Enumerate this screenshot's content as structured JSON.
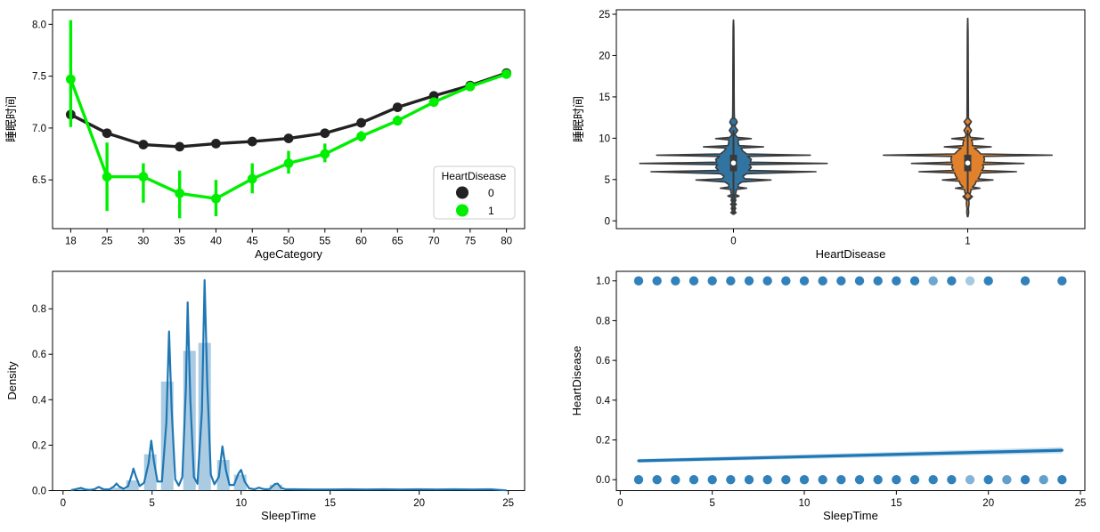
{
  "figure": {
    "background": "#ffffff"
  },
  "chart_data": [
    {
      "type": "pointplot",
      "position": "top-left",
      "xlabel": "AgeCategory",
      "ylabel": "睡眠时间",
      "categories": [
        "18",
        "25",
        "30",
        "35",
        "40",
        "45",
        "50",
        "55",
        "60",
        "65",
        "70",
        "75",
        "80"
      ],
      "ytick_values": [
        6.5,
        7.0,
        7.5,
        8.0
      ],
      "ytick_labels": [
        "6.5",
        "7.0",
        "7.5",
        "8.0"
      ],
      "ylim": [
        6.03,
        8.14
      ],
      "legend": {
        "title": "HeartDisease",
        "entries": [
          {
            "label": "0",
            "color": "#222222"
          },
          {
            "label": "1",
            "color": "#00ee00"
          }
        ]
      },
      "series": [
        {
          "name": "0",
          "color": "#222222",
          "values": [
            7.13,
            6.95,
            6.84,
            6.82,
            6.85,
            6.87,
            6.9,
            6.95,
            7.05,
            7.2,
            7.31,
            7.41,
            7.53
          ],
          "ci": [
            [
              7.09,
              7.17
            ],
            [
              6.93,
              6.97
            ],
            [
              6.82,
              6.86
            ],
            [
              6.8,
              6.84
            ],
            [
              6.83,
              6.87
            ],
            [
              6.85,
              6.89
            ],
            [
              6.88,
              6.92
            ],
            [
              6.93,
              6.97
            ],
            [
              7.03,
              7.07
            ],
            [
              7.18,
              7.22
            ],
            [
              7.29,
              7.33
            ],
            [
              7.39,
              7.43
            ],
            [
              7.5,
              7.56
            ]
          ]
        },
        {
          "name": "1",
          "color": "#00ee00",
          "values": [
            7.47,
            6.53,
            6.53,
            6.37,
            6.32,
            6.51,
            6.66,
            6.75,
            6.92,
            7.07,
            7.25,
            7.4,
            7.52
          ],
          "ci": [
            [
              7.01,
              8.04
            ],
            [
              6.2,
              6.86
            ],
            [
              6.28,
              6.66
            ],
            [
              6.13,
              6.59
            ],
            [
              6.15,
              6.5
            ],
            [
              6.37,
              6.66
            ],
            [
              6.56,
              6.78
            ],
            [
              6.67,
              6.85
            ],
            [
              6.87,
              6.97
            ],
            [
              7.03,
              7.12
            ],
            [
              7.21,
              7.29
            ],
            [
              7.36,
              7.44
            ],
            [
              7.49,
              7.56
            ]
          ]
        }
      ]
    },
    {
      "type": "violin",
      "position": "top-right",
      "xlabel": "HeartDisease",
      "ylabel": "睡眠时间",
      "categories": [
        "0",
        "1"
      ],
      "ytick_values": [
        0,
        5,
        10,
        15,
        20,
        25
      ],
      "ytick_labels": [
        "0",
        "5",
        "10",
        "15",
        "20",
        "25"
      ],
      "ylim": [
        -0.94,
        25.54
      ],
      "edge_color": "#3a3a3a",
      "inner_color": "#3a3a3a",
      "violins": [
        {
          "label": "0",
          "color": "#3274a1",
          "tip_top": 24.3,
          "tip_bottom": 0.8,
          "profile": [
            [
              0.8,
              0.004
            ],
            [
              1,
              0.028
            ],
            [
              1.2,
              0.01
            ],
            [
              1.5,
              0.024
            ],
            [
              1.8,
              0.01
            ],
            [
              2,
              0.03
            ],
            [
              2.2,
              0.012
            ],
            [
              2.5,
              0.026
            ],
            [
              2.8,
              0.012
            ],
            [
              3,
              0.06
            ],
            [
              3.2,
              0.02
            ],
            [
              3.5,
              0.028
            ],
            [
              3.8,
              0.03
            ],
            [
              3.95,
              0.14
            ],
            [
              4.1,
              0.05
            ],
            [
              4.4,
              0.05
            ],
            [
              4.7,
              0.09
            ],
            [
              4.95,
              0.4
            ],
            [
              5.1,
              0.12
            ],
            [
              5.4,
              0.1
            ],
            [
              5.7,
              0.14
            ],
            [
              5.95,
              0.88
            ],
            [
              6.1,
              0.16
            ],
            [
              6.45,
              0.19
            ],
            [
              6.8,
              0.17
            ],
            [
              6.95,
              1.0
            ],
            [
              7.1,
              0.18
            ],
            [
              7.45,
              0.19
            ],
            [
              7.8,
              0.15
            ],
            [
              7.95,
              0.82
            ],
            [
              8.1,
              0.14
            ],
            [
              8.45,
              0.1
            ],
            [
              8.8,
              0.08
            ],
            [
              8.95,
              0.32
            ],
            [
              9.1,
              0.06
            ],
            [
              9.45,
              0.05
            ],
            [
              9.8,
              0.05
            ],
            [
              9.95,
              0.19
            ],
            [
              10.1,
              0.04
            ],
            [
              10.45,
              0.015
            ],
            [
              10.95,
              0.045
            ],
            [
              11.45,
              0.012
            ],
            [
              11.95,
              0.04
            ],
            [
              12.45,
              0.01
            ],
            [
              13,
              0.009
            ],
            [
              14,
              0.008
            ],
            [
              16,
              0.007
            ],
            [
              18,
              0.007
            ],
            [
              20,
              0.006
            ],
            [
              22,
              0.005
            ],
            [
              23.5,
              0.004
            ],
            [
              24.3,
              0.001
            ]
          ],
          "box": {
            "q1": 6,
            "q3": 8,
            "median": 7,
            "whisker_lo": 3,
            "whisker_hi": 11
          },
          "outlier_circles": [
            12
          ],
          "outlier_dots": [
            3,
            2.5,
            2,
            1.5,
            1
          ],
          "outlier_diamonds": []
        },
        {
          "label": "1",
          "color": "#e1812c",
          "tip_top": 24.5,
          "tip_bottom": 0.5,
          "profile": [
            [
              0.5,
              0.003
            ],
            [
              1,
              0.01
            ],
            [
              1.5,
              0.008
            ],
            [
              2,
              0.014
            ],
            [
              2.5,
              0.012
            ],
            [
              2.95,
              0.05
            ],
            [
              3.15,
              0.02
            ],
            [
              3.45,
              0.03
            ],
            [
              3.8,
              0.035
            ],
            [
              3.95,
              0.13
            ],
            [
              4.1,
              0.05
            ],
            [
              4.45,
              0.08
            ],
            [
              4.8,
              0.09
            ],
            [
              4.95,
              0.27
            ],
            [
              5.1,
              0.11
            ],
            [
              5.45,
              0.13
            ],
            [
              5.8,
              0.14
            ],
            [
              5.95,
              0.52
            ],
            [
              6.1,
              0.15
            ],
            [
              6.45,
              0.17
            ],
            [
              6.8,
              0.16
            ],
            [
              6.95,
              0.6
            ],
            [
              7.1,
              0.17
            ],
            [
              7.45,
              0.18
            ],
            [
              7.8,
              0.17
            ],
            [
              7.95,
              0.9
            ],
            [
              8.1,
              0.14
            ],
            [
              8.45,
              0.11
            ],
            [
              8.8,
              0.07
            ],
            [
              8.95,
              0.25
            ],
            [
              9.1,
              0.05
            ],
            [
              9.45,
              0.05
            ],
            [
              9.8,
              0.04
            ],
            [
              9.95,
              0.17
            ],
            [
              10.1,
              0.03
            ],
            [
              10.45,
              0.015
            ],
            [
              10.95,
              0.04
            ],
            [
              11.45,
              0.01
            ],
            [
              11.95,
              0.035
            ],
            [
              12.45,
              0.008
            ],
            [
              13,
              0.008
            ],
            [
              15,
              0.007
            ],
            [
              18,
              0.006
            ],
            [
              21,
              0.005
            ],
            [
              23,
              0.004
            ],
            [
              24.5,
              0.001
            ]
          ],
          "box": {
            "q1": 6,
            "q3": 8,
            "median": 7,
            "whisker_lo": 3,
            "whisker_hi": 11
          },
          "outlier_circles": [],
          "outlier_dots": [],
          "outlier_diamonds": [
            12,
            3
          ]
        }
      ]
    },
    {
      "type": "distplot",
      "position": "bottom-left",
      "xlabel": "SleepTime",
      "ylabel": "Density",
      "xtick_values": [
        0,
        5,
        10,
        15,
        20,
        25
      ],
      "xtick_labels": [
        "0",
        "5",
        "10",
        "15",
        "20",
        "25"
      ],
      "ytick_values": [
        0.0,
        0.2,
        0.4,
        0.6,
        0.8
      ],
      "ytick_labels": [
        "0.0",
        "0.2",
        "0.4",
        "0.6",
        "0.8"
      ],
      "xlim": [
        -0.59,
        25.92
      ],
      "ylim": [
        0,
        0.9647
      ],
      "color": "#1f77b4",
      "hist_alpha": 0.38,
      "hist_bars": [
        [
          0.9,
          1.6,
          0.008
        ],
        [
          2.1,
          2.8,
          0.01
        ],
        [
          2.8,
          3.5,
          0.013
        ],
        [
          3.55,
          4.25,
          0.045
        ],
        [
          4.55,
          5.25,
          0.16
        ],
        [
          5.5,
          6.2,
          0.48
        ],
        [
          6.75,
          7.45,
          0.615
        ],
        [
          7.6,
          8.3,
          0.65
        ],
        [
          8.65,
          9.35,
          0.135
        ],
        [
          9.6,
          10.3,
          0.07
        ],
        [
          11.6,
          12.3,
          0.026
        ],
        [
          12.9,
          24.5,
          0.006
        ]
      ],
      "kde": [
        [
          0.45,
          0.002
        ],
        [
          0.7,
          0.006
        ],
        [
          1,
          0.012
        ],
        [
          1.25,
          0.005
        ],
        [
          1.5,
          0.003
        ],
        [
          1.75,
          0.006
        ],
        [
          2,
          0.016
        ],
        [
          2.3,
          0.005
        ],
        [
          2.6,
          0.006
        ],
        [
          2.85,
          0.018
        ],
        [
          3,
          0.031
        ],
        [
          3.15,
          0.018
        ],
        [
          3.4,
          0.008
        ],
        [
          3.65,
          0.02
        ],
        [
          3.88,
          0.075
        ],
        [
          3.95,
          0.097
        ],
        [
          4.1,
          0.06
        ],
        [
          4.3,
          0.02
        ],
        [
          4.55,
          0.035
        ],
        [
          4.8,
          0.12
        ],
        [
          4.95,
          0.22
        ],
        [
          5.1,
          0.13
        ],
        [
          5.3,
          0.04
        ],
        [
          5.55,
          0.04
        ],
        [
          5.8,
          0.3
        ],
        [
          5.95,
          0.7
        ],
        [
          6.1,
          0.36
        ],
        [
          6.3,
          0.05
        ],
        [
          6.5,
          0.022
        ],
        [
          6.7,
          0.06
        ],
        [
          6.9,
          0.45
        ],
        [
          7,
          0.828
        ],
        [
          7.15,
          0.4
        ],
        [
          7.35,
          0.06
        ],
        [
          7.55,
          0.03
        ],
        [
          7.8,
          0.35
        ],
        [
          7.95,
          0.926
        ],
        [
          8.1,
          0.47
        ],
        [
          8.3,
          0.07
        ],
        [
          8.5,
          0.028
        ],
        [
          8.75,
          0.06
        ],
        [
          8.95,
          0.195
        ],
        [
          9.15,
          0.09
        ],
        [
          9.35,
          0.025
        ],
        [
          9.6,
          0.025
        ],
        [
          9.85,
          0.075
        ],
        [
          10,
          0.091
        ],
        [
          10.2,
          0.04
        ],
        [
          10.45,
          0.01
        ],
        [
          10.75,
          0.006
        ],
        [
          11,
          0.013
        ],
        [
          11.3,
          0.006
        ],
        [
          11.6,
          0.007
        ],
        [
          11.9,
          0.029
        ],
        [
          12.05,
          0.031
        ],
        [
          12.25,
          0.012
        ],
        [
          12.5,
          0.006
        ],
        [
          13,
          0.006
        ],
        [
          14,
          0.005
        ],
        [
          15,
          0.005
        ],
        [
          16,
          0.006
        ],
        [
          17,
          0.005
        ],
        [
          18,
          0.006
        ],
        [
          19,
          0.005
        ],
        [
          20,
          0.006
        ],
        [
          21,
          0.005
        ],
        [
          22,
          0.006
        ],
        [
          23,
          0.005
        ],
        [
          24,
          0.006
        ],
        [
          24.5,
          0.003
        ],
        [
          24.9,
          0.001
        ]
      ]
    },
    {
      "type": "regplot",
      "position": "bottom-right",
      "xlabel": "SleepTime",
      "ylabel": "HeartDisease",
      "xtick_values": [
        0,
        5,
        10,
        15,
        20,
        25
      ],
      "xtick_labels": [
        "0",
        "5",
        "10",
        "15",
        "20",
        "25"
      ],
      "ytick_values": [
        0.0,
        0.2,
        0.4,
        0.6,
        0.8,
        1.0
      ],
      "ytick_labels": [
        "0.0",
        "0.2",
        "0.4",
        "0.6",
        "0.8",
        "1.0"
      ],
      "xlim": [
        -0.21,
        25.24
      ],
      "ylim": [
        -0.055,
        1.048
      ],
      "color": "#1f77b4",
      "scatter": {
        "y1_x": [
          1,
          2,
          3,
          4,
          5,
          6,
          7,
          8,
          9,
          10,
          11,
          12,
          13,
          14,
          15,
          16,
          17,
          18,
          19,
          20,
          22,
          24
        ],
        "y0_x": [
          1,
          2,
          3,
          4,
          5,
          6,
          7,
          8,
          9,
          10,
          11,
          12,
          13,
          14,
          15,
          16,
          17,
          18,
          19,
          20,
          21,
          22,
          23,
          24
        ],
        "base_opacity": 0.92,
        "faded_y1": [
          [
            17,
            0.65
          ],
          [
            19,
            0.4
          ]
        ],
        "faded_y0": [
          [
            19,
            0.55
          ],
          [
            21,
            0.7
          ],
          [
            23,
            0.7
          ]
        ]
      },
      "regression": {
        "x": [
          1,
          24
        ],
        "y": [
          0.095,
          0.148
        ],
        "ci_half_left": 0.009,
        "ci_half_right": 0.015
      }
    }
  ]
}
